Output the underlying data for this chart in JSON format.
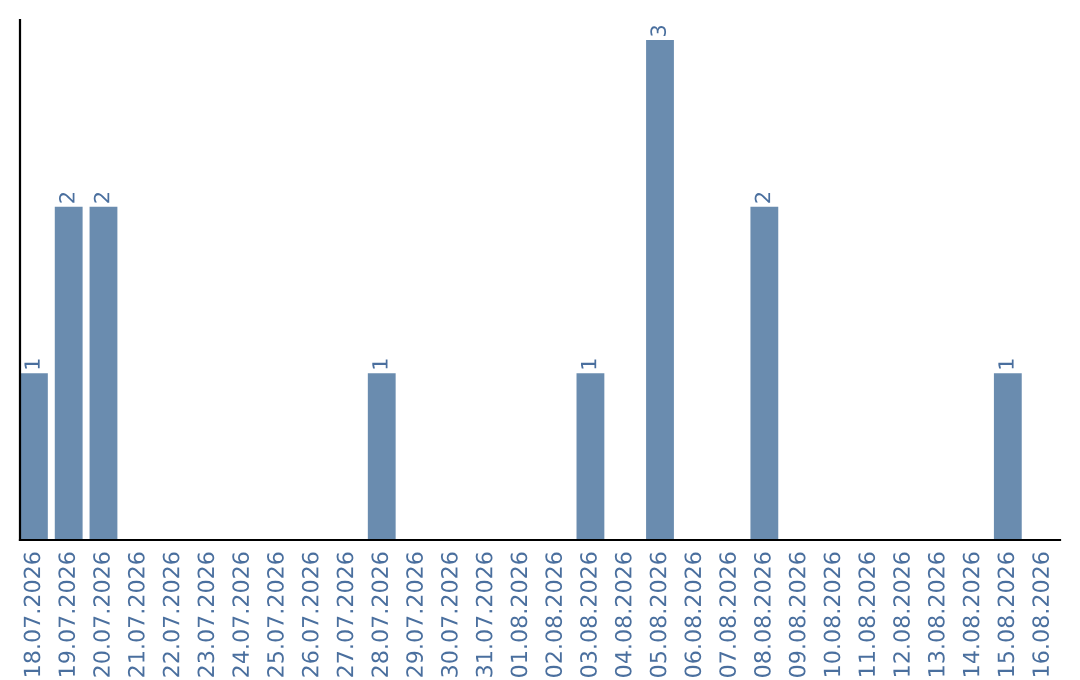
{
  "chart_data": {
    "type": "bar",
    "categories": [
      "18.07.2026",
      "19.07.2026",
      "20.07.2026",
      "21.07.2026",
      "22.07.2026",
      "23.07.2026",
      "24.07.2026",
      "25.07.2026",
      "26.07.2026",
      "27.07.2026",
      "28.07.2026",
      "29.07.2026",
      "30.07.2026",
      "31.07.2026",
      "01.08.2026",
      "02.08.2026",
      "03.08.2026",
      "04.08.2026",
      "05.08.2026",
      "06.08.2026",
      "07.08.2026",
      "08.08.2026",
      "09.08.2026",
      "10.08.2026",
      "11.08.2026",
      "12.08.2026",
      "13.08.2026",
      "14.08.2026",
      "15.08.2026",
      "16.08.2026"
    ],
    "values": [
      1,
      2,
      2,
      0,
      0,
      0,
      0,
      0,
      0,
      0,
      1,
      0,
      0,
      0,
      0,
      0,
      1,
      0,
      3,
      0,
      0,
      2,
      0,
      0,
      0,
      0,
      0,
      0,
      1,
      0
    ],
    "value_labels": [
      "1",
      "2",
      "2",
      null,
      null,
      null,
      null,
      null,
      null,
      null,
      "1",
      null,
      null,
      null,
      null,
      null,
      "1",
      null,
      "3",
      null,
      null,
      "2",
      null,
      null,
      null,
      null,
      null,
      null,
      "1",
      null
    ],
    "color": "#6a8caf",
    "tick_labels": "x",
    "grid": false,
    "legend": false
  }
}
